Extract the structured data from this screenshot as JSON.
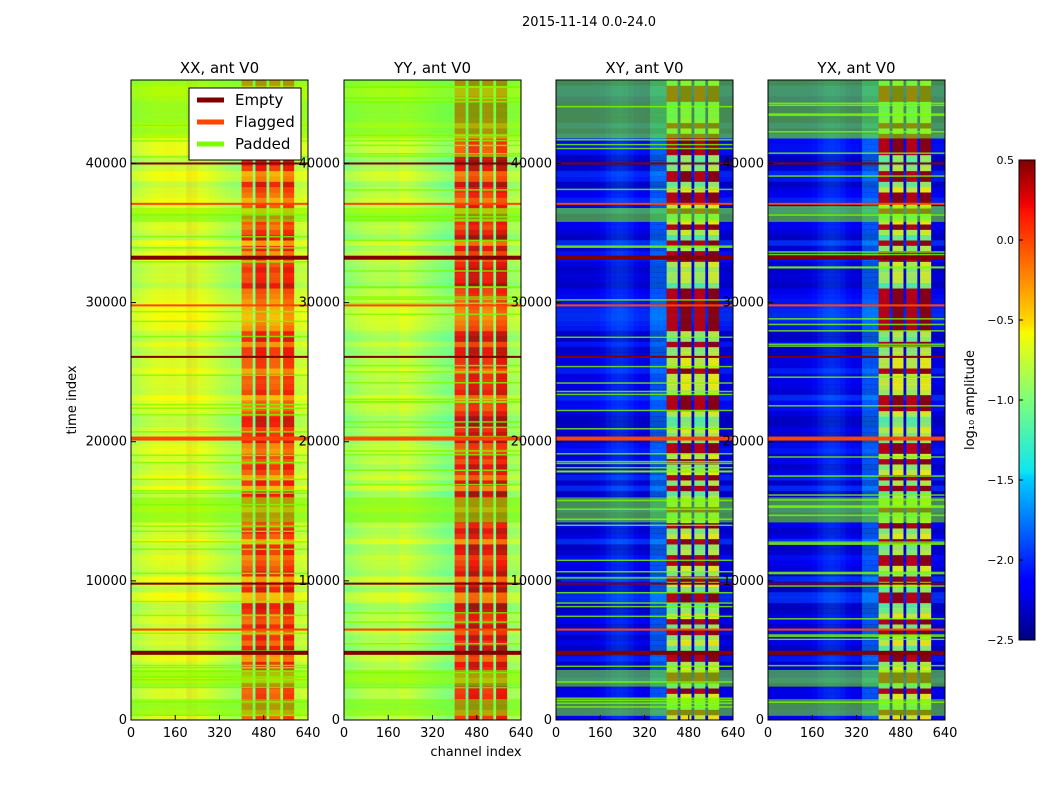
{
  "chart_data": {
    "type": "heatmap",
    "suptitle": "2015-11-14 0.0-24.0",
    "xlabel": "channel index",
    "ylabel": "time index",
    "xlim": [
      0,
      640
    ],
    "ylim": [
      0,
      46000
    ],
    "x_ticks": [
      0,
      160,
      320,
      480,
      640
    ],
    "y_ticks": [
      0,
      10000,
      20000,
      30000,
      40000
    ],
    "panels": [
      {
        "title": "XX, ant V0",
        "kind": "parallel",
        "base": -0.85,
        "hot": 0.2
      },
      {
        "title": "YY, ant V0",
        "kind": "parallel",
        "base": -0.95,
        "hot": 0.35
      },
      {
        "title": "XY, ant V0",
        "kind": "cross",
        "base": -2.2,
        "hot": 0.15
      },
      {
        "title": "YX, ant V0",
        "kind": "cross",
        "base": -2.2,
        "hot": 0.15
      }
    ],
    "hot_channel_range": [
      400,
      600
    ],
    "colorbar": {
      "label": "log₁₀ amplitude",
      "range": [
        -2.5,
        0.5
      ],
      "ticks": [
        0.5,
        0.0,
        -0.5,
        -1.0,
        -1.5,
        -2.0,
        -2.5
      ],
      "tick_labels": [
        "0.5",
        "0.0",
        "−0.5",
        "−1.0",
        "−1.5",
        "−2.0",
        "−2.5"
      ],
      "colormap": "jet"
    },
    "legend": {
      "placement": "top-right of first panel",
      "entries": [
        {
          "label": "Empty",
          "color": "#800000"
        },
        {
          "label": "Flagged",
          "color": "#ff4500"
        },
        {
          "label": "Padded",
          "color": "#7cfc00"
        }
      ]
    },
    "flagged_rows": [
      4900,
      6500,
      9800,
      20300,
      26100,
      29800,
      33300,
      37100,
      40000
    ],
    "padded_bands": [
      [
        300,
        1500
      ],
      [
        2400,
        3600
      ],
      [
        14200,
        16000
      ],
      [
        35800,
        36800
      ],
      [
        41800,
        46000
      ]
    ]
  }
}
